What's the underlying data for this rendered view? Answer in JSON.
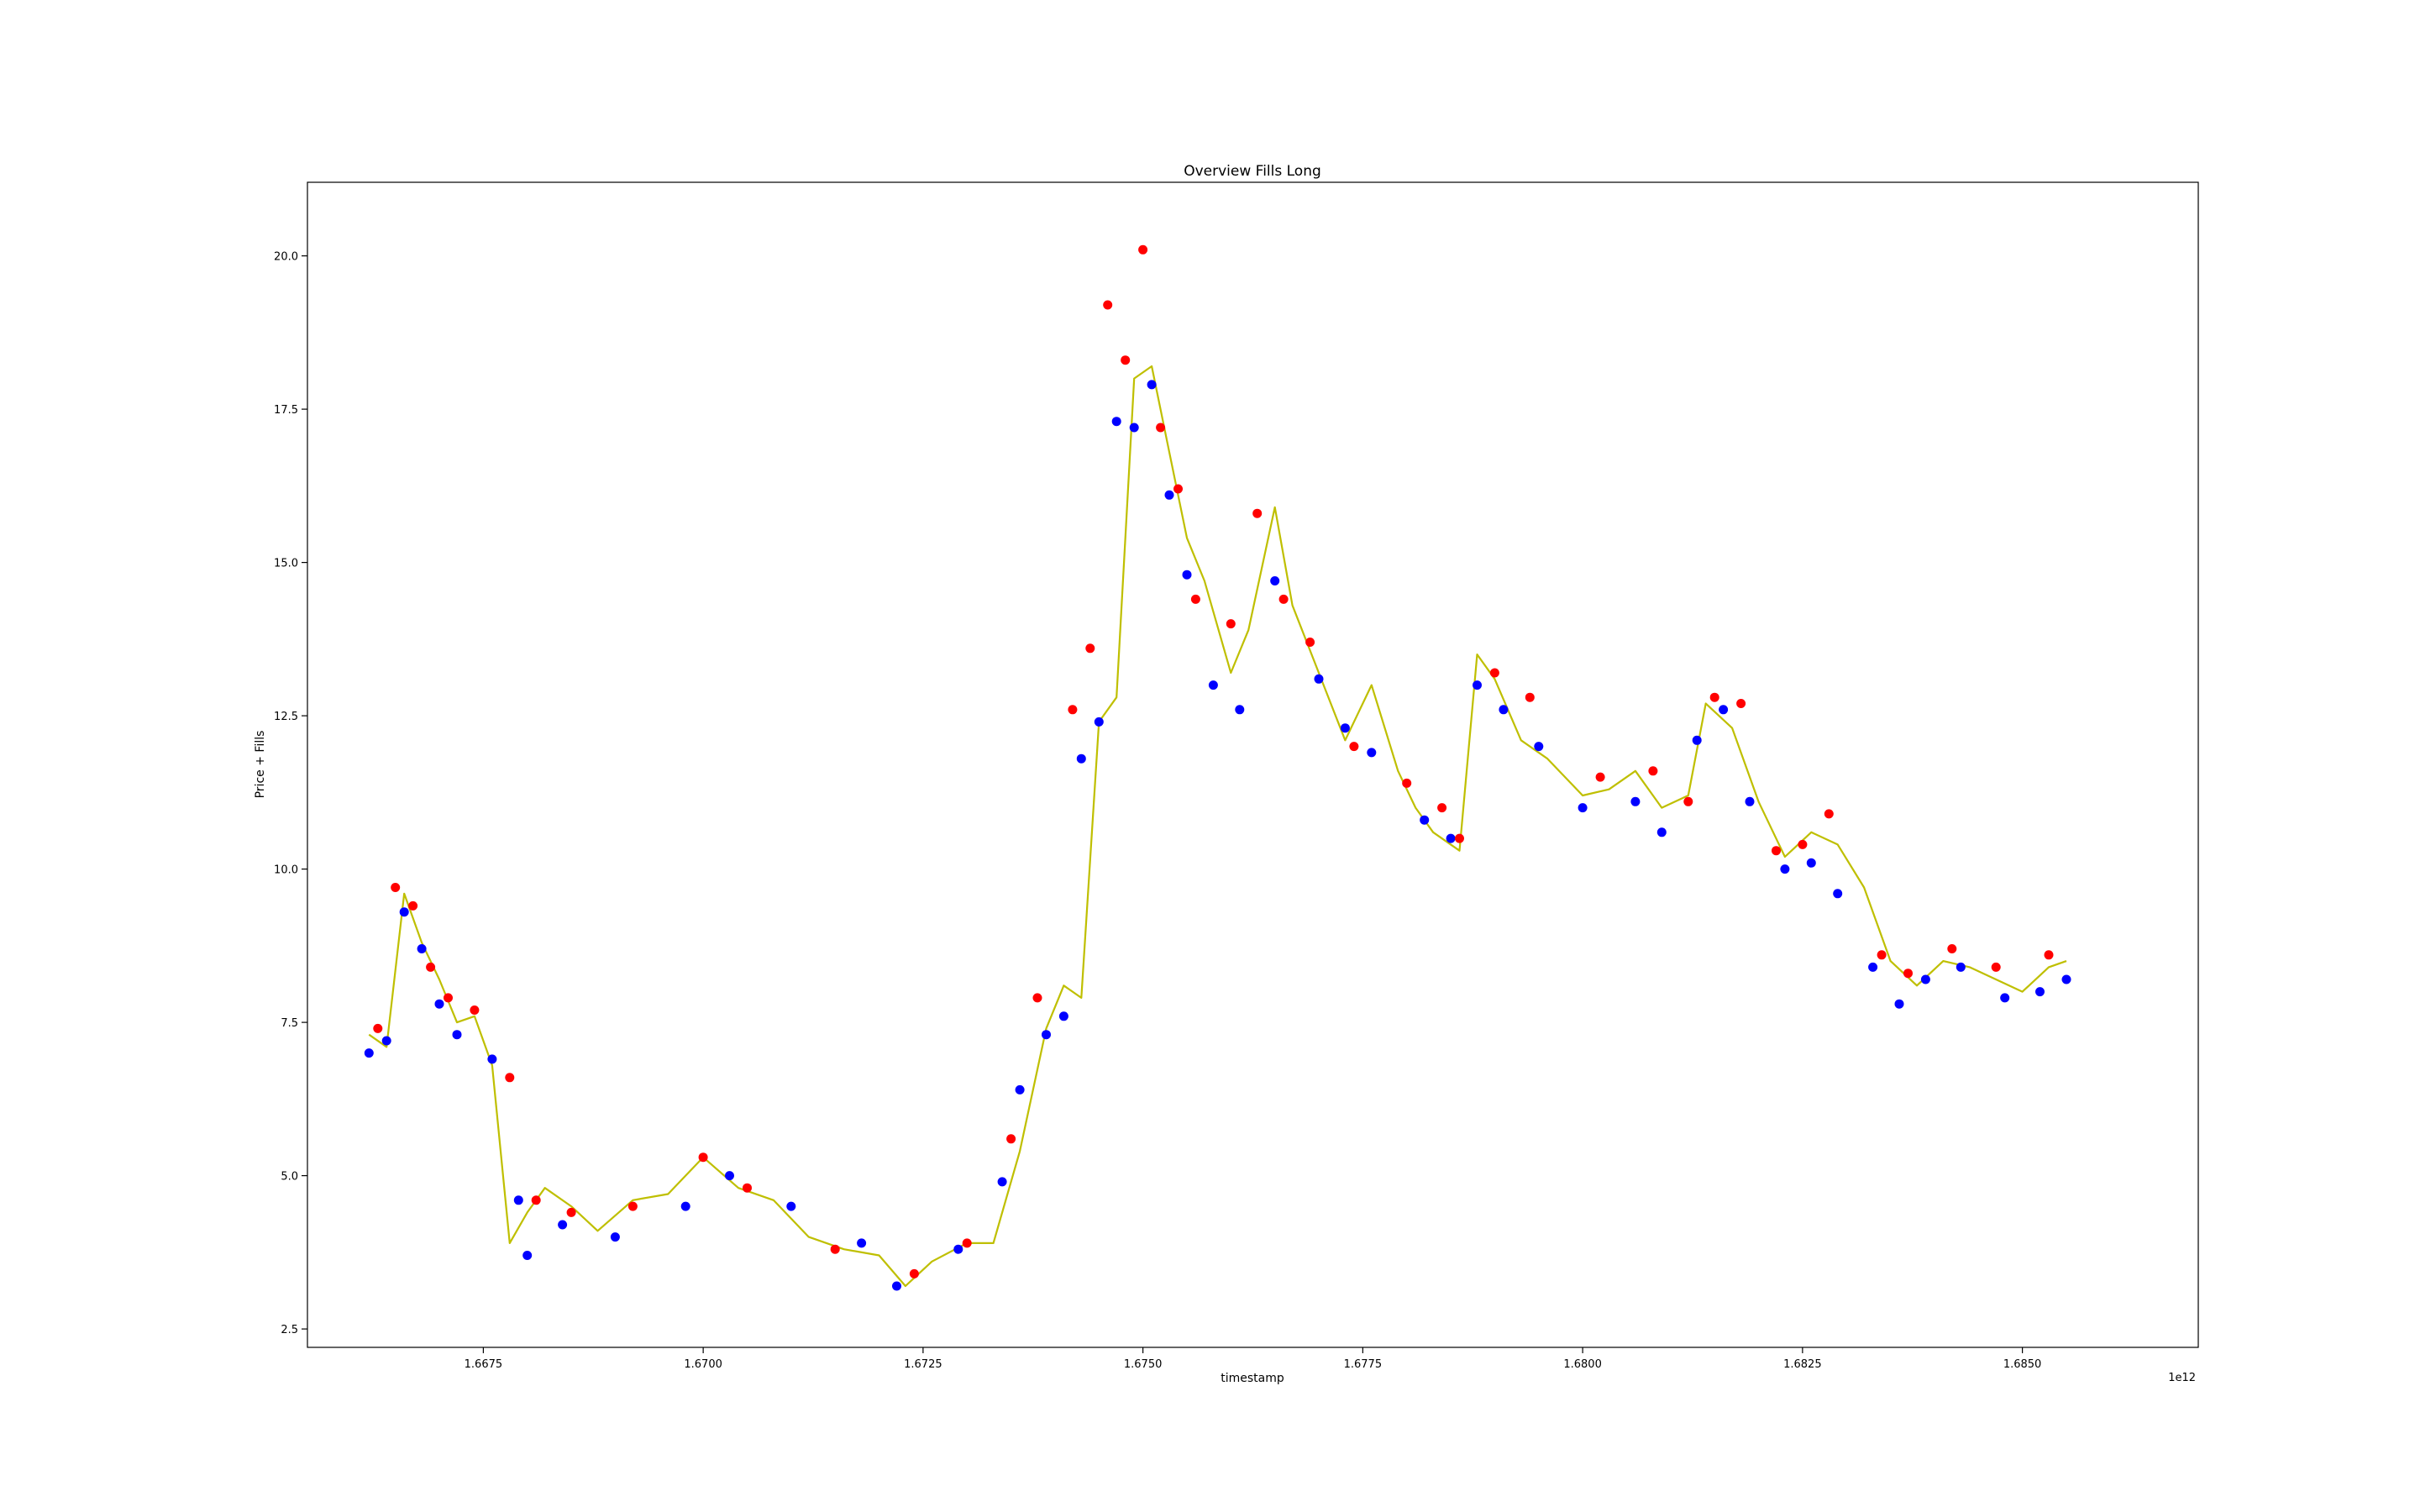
{
  "chart_data": {
    "type": "line",
    "title": "Overview Fills Long",
    "xlabel": "timestamp",
    "ylabel": "Price + Fills",
    "x_offset_label": "1e12",
    "xlim": [
      1.6655,
      1.687
    ],
    "ylim": [
      2.2,
      21.2
    ],
    "x_ticks": [
      1.6675,
      1.67,
      1.6725,
      1.675,
      1.6775,
      1.68,
      1.6825,
      1.685
    ],
    "x_tick_labels": [
      "1.6675",
      "1.6700",
      "1.6725",
      "1.6750",
      "1.6775",
      "1.6800",
      "1.6825",
      "1.6850"
    ],
    "y_ticks": [
      2.5,
      5.0,
      7.5,
      10.0,
      12.5,
      15.0,
      17.5,
      20.0
    ],
    "y_tick_labels": [
      "2.5",
      "5.0",
      "7.5",
      "10.0",
      "12.5",
      "15.0",
      "17.5",
      "20.0"
    ],
    "grid": false,
    "colors": {
      "price_line": "#bfbf00",
      "buy_fill": "#0000ff",
      "sell_fill": "#ff0000",
      "position_line": "#000000"
    },
    "series": [
      {
        "key": "price",
        "style": "line",
        "x": [
          1.6662,
          1.6664,
          1.6666,
          1.6668,
          1.667,
          1.6672,
          1.6674,
          1.6676,
          1.6678,
          1.668,
          1.6682,
          1.6685,
          1.6688,
          1.6692,
          1.6696,
          1.67,
          1.6704,
          1.6708,
          1.6712,
          1.6716,
          1.672,
          1.6723,
          1.6726,
          1.673,
          1.6733,
          1.6736,
          1.6739,
          1.6741,
          1.6743,
          1.6745,
          1.6747,
          1.6749,
          1.6751,
          1.6753,
          1.6755,
          1.6757,
          1.676,
          1.6762,
          1.6765,
          1.6767,
          1.677,
          1.6773,
          1.6776,
          1.6779,
          1.6781,
          1.6783,
          1.6786,
          1.6788,
          1.679,
          1.6793,
          1.6796,
          1.68,
          1.6803,
          1.6806,
          1.6809,
          1.6812,
          1.6814,
          1.6817,
          1.682,
          1.6823,
          1.6826,
          1.6829,
          1.6832,
          1.6835,
          1.6838,
          1.6841,
          1.6844,
          1.6847,
          1.685,
          1.6853,
          1.6855
        ],
        "y": [
          7.3,
          7.1,
          9.6,
          8.8,
          8.2,
          7.5,
          7.6,
          6.8,
          3.9,
          4.4,
          4.8,
          4.5,
          4.1,
          4.6,
          4.7,
          5.3,
          4.8,
          4.6,
          4.0,
          3.8,
          3.7,
          3.2,
          3.6,
          3.9,
          3.9,
          5.4,
          7.4,
          8.1,
          7.9,
          12.4,
          12.8,
          18.0,
          18.2,
          16.8,
          15.4,
          14.7,
          13.2,
          13.9,
          15.9,
          14.3,
          13.2,
          12.1,
          13.0,
          11.6,
          11.0,
          10.6,
          10.3,
          13.5,
          13.1,
          12.1,
          11.8,
          11.2,
          11.3,
          11.6,
          11.0,
          11.2,
          12.7,
          12.3,
          11.1,
          10.2,
          10.6,
          10.4,
          9.7,
          8.5,
          8.1,
          8.5,
          8.4,
          8.2,
          8.0,
          8.4,
          8.5
        ]
      },
      {
        "key": "buys",
        "style": "markers",
        "x": [
          1.6662,
          1.6664,
          1.6666,
          1.6668,
          1.667,
          1.6672,
          1.6676,
          1.6679,
          1.668,
          1.6684,
          1.669,
          1.6698,
          1.6703,
          1.671,
          1.6718,
          1.6722,
          1.6729,
          1.6734,
          1.6736,
          1.6739,
          1.6741,
          1.6743,
          1.6745,
          1.6747,
          1.6749,
          1.6751,
          1.6753,
          1.6755,
          1.6758,
          1.6761,
          1.6765,
          1.677,
          1.6773,
          1.6776,
          1.6782,
          1.6785,
          1.6788,
          1.6791,
          1.6795,
          1.68,
          1.6806,
          1.6809,
          1.6813,
          1.6816,
          1.6819,
          1.6823,
          1.6826,
          1.6829,
          1.6833,
          1.6836,
          1.6839,
          1.6843,
          1.6848,
          1.6852,
          1.6855
        ],
        "y": [
          7.0,
          7.2,
          9.3,
          8.7,
          7.8,
          7.3,
          6.9,
          4.6,
          3.7,
          4.2,
          4.0,
          4.5,
          5.0,
          4.5,
          3.9,
          3.2,
          3.8,
          4.9,
          6.4,
          7.3,
          7.6,
          11.8,
          12.4,
          17.3,
          17.2,
          17.9,
          16.1,
          14.8,
          13.0,
          12.6,
          14.7,
          13.1,
          12.3,
          11.9,
          10.8,
          10.5,
          13.0,
          12.6,
          12.0,
          11.0,
          11.1,
          10.6,
          12.1,
          12.6,
          11.1,
          10.0,
          10.1,
          9.6,
          8.4,
          7.8,
          8.2,
          8.4,
          7.9,
          8.0,
          8.2
        ]
      },
      {
        "key": "sells",
        "style": "markers",
        "x": [
          1.6663,
          1.6665,
          1.6667,
          1.6669,
          1.6671,
          1.6674,
          1.6678,
          1.6681,
          1.6685,
          1.6692,
          1.67,
          1.6705,
          1.6715,
          1.6724,
          1.673,
          1.6735,
          1.6738,
          1.6742,
          1.6744,
          1.6746,
          1.6748,
          1.675,
          1.6752,
          1.6754,
          1.6756,
          1.676,
          1.6763,
          1.6766,
          1.6769,
          1.6774,
          1.678,
          1.6784,
          1.6786,
          1.679,
          1.6794,
          1.6802,
          1.6808,
          1.6812,
          1.6815,
          1.6818,
          1.6822,
          1.6825,
          1.6828,
          1.6834,
          1.6837,
          1.6842,
          1.6847,
          1.6853
        ],
        "y": [
          7.4,
          9.7,
          9.4,
          8.4,
          7.9,
          7.7,
          6.6,
          4.6,
          4.4,
          4.5,
          5.3,
          4.8,
          3.8,
          3.4,
          3.9,
          5.6,
          7.9,
          12.6,
          13.6,
          19.2,
          18.3,
          20.1,
          17.2,
          16.2,
          14.4,
          14.0,
          15.8,
          14.4,
          13.7,
          12.0,
          11.4,
          11.0,
          10.5,
          13.2,
          12.8,
          11.5,
          11.6,
          11.1,
          12.8,
          12.7,
          10.3,
          10.4,
          10.9,
          8.6,
          8.3,
          8.7,
          8.4,
          8.6
        ]
      }
    ]
  }
}
